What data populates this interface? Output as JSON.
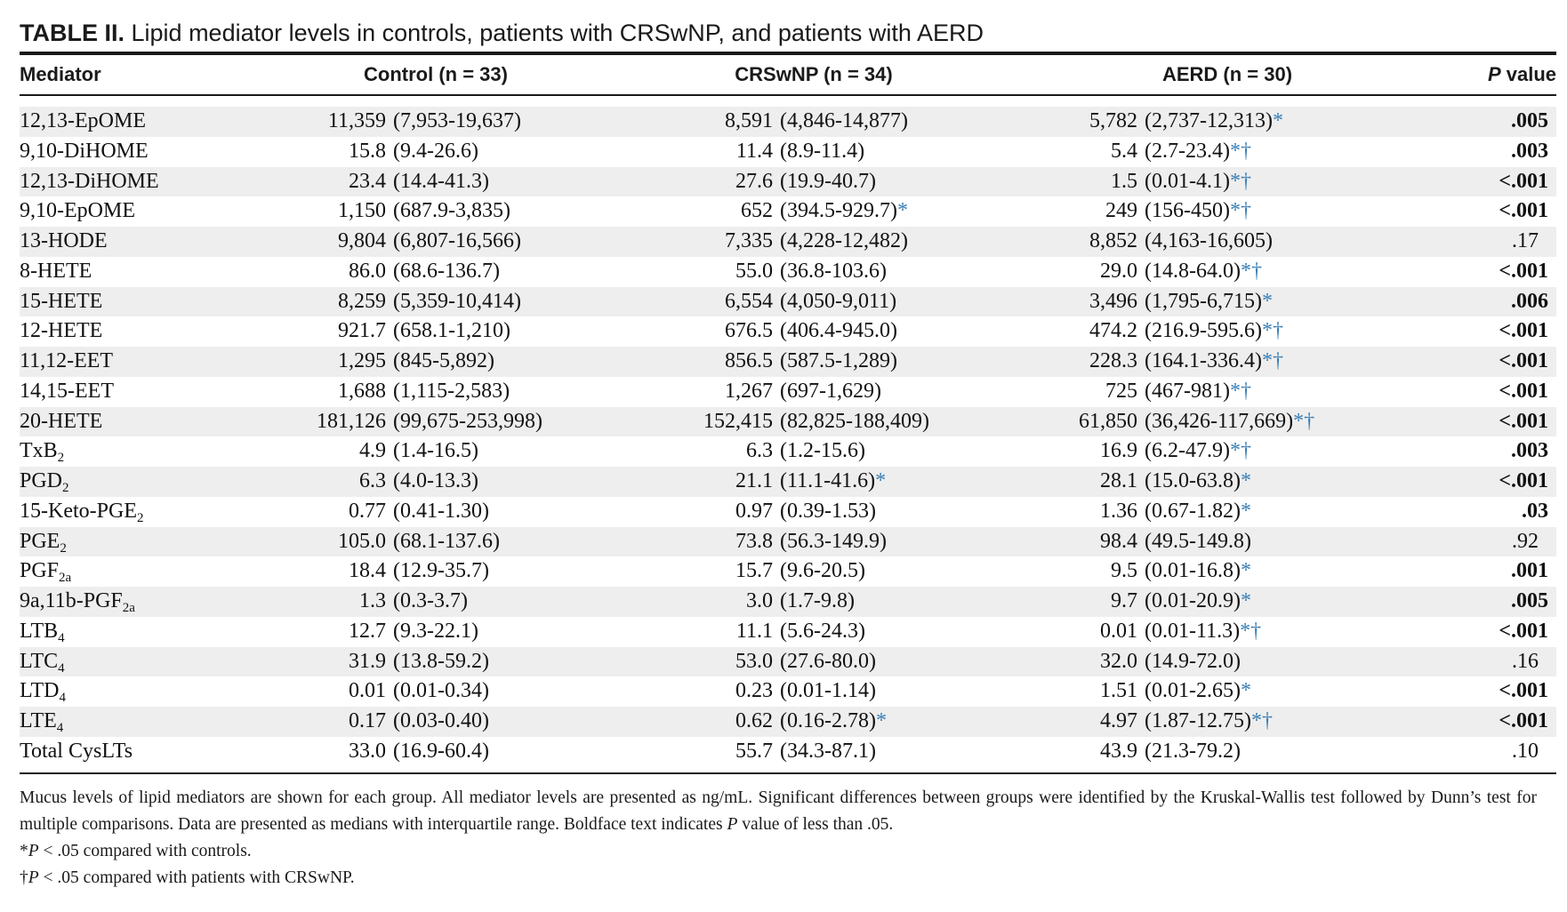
{
  "title": {
    "label": "TABLE II.",
    "text": "Lipid mediator levels in controls, patients with CRSwNP, and patients with AERD"
  },
  "columns": {
    "mediator": "Mediator",
    "control": "Control (n = 33)",
    "crswnp": "CRSwNP (n = 34)",
    "aerd": "AERD (n = 30)",
    "p_italic": "P",
    "p_rest": " value"
  },
  "colors": {
    "significance_marker": "#3a7fb5",
    "row_shade": "#eeeeee"
  },
  "rows": [
    {
      "name": "12,13-EpOME",
      "sub": "",
      "control_med": "11,359",
      "control_iqr": "(7,953-19,637)",
      "crswnp_med": "8,591",
      "crswnp_iqr": "(4,846-14,877)",
      "crswnp_sig": "",
      "aerd_med": "5,782",
      "aerd_iqr": "(2,737-12,313)",
      "aerd_sig": "*",
      "p": ".005",
      "p_bold": true
    },
    {
      "name": "9,10-DiHOME",
      "sub": "",
      "control_med": "15.8",
      "control_iqr": "(9.4-26.6)",
      "crswnp_med": "11.4",
      "crswnp_iqr": "(8.9-11.4)",
      "crswnp_sig": "",
      "aerd_med": "5.4",
      "aerd_iqr": "(2.7-23.4)",
      "aerd_sig": "*†",
      "p": ".003",
      "p_bold": true
    },
    {
      "name": "12,13-DiHOME",
      "sub": "",
      "control_med": "23.4",
      "control_iqr": "(14.4-41.3)",
      "crswnp_med": "27.6",
      "crswnp_iqr": "(19.9-40.7)",
      "crswnp_sig": "",
      "aerd_med": "1.5",
      "aerd_iqr": "(0.01-4.1)",
      "aerd_sig": "*†",
      "p": "<.001",
      "p_bold": true
    },
    {
      "name": "9,10-EpOME",
      "sub": "",
      "control_med": "1,150",
      "control_iqr": "(687.9-3,835)",
      "crswnp_med": "652",
      "crswnp_iqr": "(394.5-929.7)",
      "crswnp_sig": "*",
      "aerd_med": "249",
      "aerd_iqr": "(156-450)",
      "aerd_sig": "*†",
      "p": "<.001",
      "p_bold": true
    },
    {
      "name": "13-HODE",
      "sub": "",
      "control_med": "9,804",
      "control_iqr": "(6,807-16,566)",
      "crswnp_med": "7,335",
      "crswnp_iqr": "(4,228-12,482)",
      "crswnp_sig": "",
      "aerd_med": "8,852",
      "aerd_iqr": "(4,163-16,605)",
      "aerd_sig": "",
      "p": ".17",
      "p_bold": false
    },
    {
      "name": "8-HETE",
      "sub": "",
      "control_med": "86.0",
      "control_iqr": "(68.6-136.7)",
      "crswnp_med": "55.0",
      "crswnp_iqr": "(36.8-103.6)",
      "crswnp_sig": "",
      "aerd_med": "29.0",
      "aerd_iqr": "(14.8-64.0)",
      "aerd_sig": "*†",
      "p": "<.001",
      "p_bold": true
    },
    {
      "name": "15-HETE",
      "sub": "",
      "control_med": "8,259",
      "control_iqr": "(5,359-10,414)",
      "crswnp_med": "6,554",
      "crswnp_iqr": "(4,050-9,011)",
      "crswnp_sig": "",
      "aerd_med": "3,496",
      "aerd_iqr": "(1,795-6,715)",
      "aerd_sig": "*",
      "p": ".006",
      "p_bold": true
    },
    {
      "name": "12-HETE",
      "sub": "",
      "control_med": "921.7",
      "control_iqr": "(658.1-1,210)",
      "crswnp_med": "676.5",
      "crswnp_iqr": "(406.4-945.0)",
      "crswnp_sig": "",
      "aerd_med": "474.2",
      "aerd_iqr": "(216.9-595.6)",
      "aerd_sig": "*†",
      "p": "<.001",
      "p_bold": true
    },
    {
      "name": "11,12-EET",
      "sub": "",
      "control_med": "1,295",
      "control_iqr": "(845-5,892)",
      "crswnp_med": "856.5",
      "crswnp_iqr": "(587.5-1,289)",
      "crswnp_sig": "",
      "aerd_med": "228.3",
      "aerd_iqr": "(164.1-336.4)",
      "aerd_sig": "*†",
      "p": "<.001",
      "p_bold": true
    },
    {
      "name": "14,15-EET",
      "sub": "",
      "control_med": "1,688",
      "control_iqr": "(1,115-2,583)",
      "crswnp_med": "1,267",
      "crswnp_iqr": "(697-1,629)",
      "crswnp_sig": "",
      "aerd_med": "725",
      "aerd_iqr": "(467-981)",
      "aerd_sig": "*†",
      "p": "<.001",
      "p_bold": true
    },
    {
      "name": "20-HETE",
      "sub": "",
      "control_med": "181,126",
      "control_iqr": "(99,675-253,998)",
      "crswnp_med": "152,415",
      "crswnp_iqr": "(82,825-188,409)",
      "crswnp_sig": "",
      "aerd_med": "61,850",
      "aerd_iqr": "(36,426-117,669)",
      "aerd_sig": "*†",
      "p": "<.001",
      "p_bold": true
    },
    {
      "name": "TxB",
      "sub": "2",
      "control_med": "4.9",
      "control_iqr": "(1.4-16.5)",
      "crswnp_med": "6.3",
      "crswnp_iqr": "(1.2-15.6)",
      "crswnp_sig": "",
      "aerd_med": "16.9",
      "aerd_iqr": "(6.2-47.9)",
      "aerd_sig": "*†",
      "p": ".003",
      "p_bold": true
    },
    {
      "name": "PGD",
      "sub": "2",
      "control_med": "6.3",
      "control_iqr": "(4.0-13.3)",
      "crswnp_med": "21.1",
      "crswnp_iqr": "(11.1-41.6)",
      "crswnp_sig": "*",
      "aerd_med": "28.1",
      "aerd_iqr": "(15.0-63.8)",
      "aerd_sig": "*",
      "p": "<.001",
      "p_bold": true
    },
    {
      "name": "15-Keto-PGE",
      "sub": "2",
      "control_med": "0.77",
      "control_iqr": "(0.41-1.30)",
      "crswnp_med": "0.97",
      "crswnp_iqr": "(0.39-1.53)",
      "crswnp_sig": "",
      "aerd_med": "1.36",
      "aerd_iqr": "(0.67-1.82)",
      "aerd_sig": "*",
      "p": ".03",
      "p_bold": true
    },
    {
      "name": "PGE",
      "sub": "2",
      "control_med": "105.0",
      "control_iqr": "(68.1-137.6)",
      "crswnp_med": "73.8",
      "crswnp_iqr": "(56.3-149.9)",
      "crswnp_sig": "",
      "aerd_med": "98.4",
      "aerd_iqr": "(49.5-149.8)",
      "aerd_sig": "",
      "p": ".92",
      "p_bold": false
    },
    {
      "name": "PGF",
      "sub": "2a",
      "control_med": "18.4",
      "control_iqr": "(12.9-35.7)",
      "crswnp_med": "15.7",
      "crswnp_iqr": "(9.6-20.5)",
      "crswnp_sig": "",
      "aerd_med": "9.5",
      "aerd_iqr": "(0.01-16.8)",
      "aerd_sig": "*",
      "p": ".001",
      "p_bold": true
    },
    {
      "name": "9a,11b-PGF",
      "sub": "2a",
      "control_med": "1.3",
      "control_iqr": "(0.3-3.7)",
      "crswnp_med": "3.0",
      "crswnp_iqr": "(1.7-9.8)",
      "crswnp_sig": "",
      "aerd_med": "9.7",
      "aerd_iqr": "(0.01-20.9)",
      "aerd_sig": "*",
      "p": ".005",
      "p_bold": true
    },
    {
      "name": "LTB",
      "sub": "4",
      "control_med": "12.7",
      "control_iqr": "(9.3-22.1)",
      "crswnp_med": "11.1",
      "crswnp_iqr": "(5.6-24.3)",
      "crswnp_sig": "",
      "aerd_med": "0.01",
      "aerd_iqr": "(0.01-11.3)",
      "aerd_sig": "*†",
      "p": "<.001",
      "p_bold": true
    },
    {
      "name": "LTC",
      "sub": "4",
      "control_med": "31.9",
      "control_iqr": "(13.8-59.2)",
      "crswnp_med": "53.0",
      "crswnp_iqr": "(27.6-80.0)",
      "crswnp_sig": "",
      "aerd_med": "32.0",
      "aerd_iqr": "(14.9-72.0)",
      "aerd_sig": "",
      "p": ".16",
      "p_bold": false
    },
    {
      "name": "LTD",
      "sub": "4",
      "control_med": "0.01",
      "control_iqr": "(0.01-0.34)",
      "crswnp_med": "0.23",
      "crswnp_iqr": "(0.01-1.14)",
      "crswnp_sig": "",
      "aerd_med": "1.51",
      "aerd_iqr": "(0.01-2.65)",
      "aerd_sig": "*",
      "p": "<.001",
      "p_bold": true
    },
    {
      "name": "LTE",
      "sub": "4",
      "control_med": "0.17",
      "control_iqr": "(0.03-0.40)",
      "crswnp_med": "0.62",
      "crswnp_iqr": "(0.16-2.78)",
      "crswnp_sig": "*",
      "aerd_med": "4.97",
      "aerd_iqr": "(1.87-12.75)",
      "aerd_sig": "*†",
      "p": "<.001",
      "p_bold": true
    },
    {
      "name": "Total CysLTs",
      "sub": "",
      "control_med": "33.0",
      "control_iqr": "(16.9-60.4)",
      "crswnp_med": "55.7",
      "crswnp_iqr": "(34.3-87.1)",
      "crswnp_sig": "",
      "aerd_med": "43.9",
      "aerd_iqr": "(21.3-79.2)",
      "aerd_sig": "",
      "p": ".10",
      "p_bold": false
    }
  ],
  "footnotes": {
    "main_before_p": "Mucus levels of lipid mediators are shown for each group. All mediator levels are presented as ng/mL. Significant differences between groups were identified by the Kruskal-Wallis test followed by Dunn’s test for multiple comparisons. Data are presented as medians with interquartile range. Boldface text indicates ",
    "main_p": "P",
    "main_after_p": " value of less than .05.",
    "star_symbol": "*",
    "star_p": "P",
    "star_text": " < .05 compared with controls.",
    "dagger_symbol": "†",
    "dagger_p": "P",
    "dagger_text": " < .05 compared with patients with CRSwNP."
  }
}
